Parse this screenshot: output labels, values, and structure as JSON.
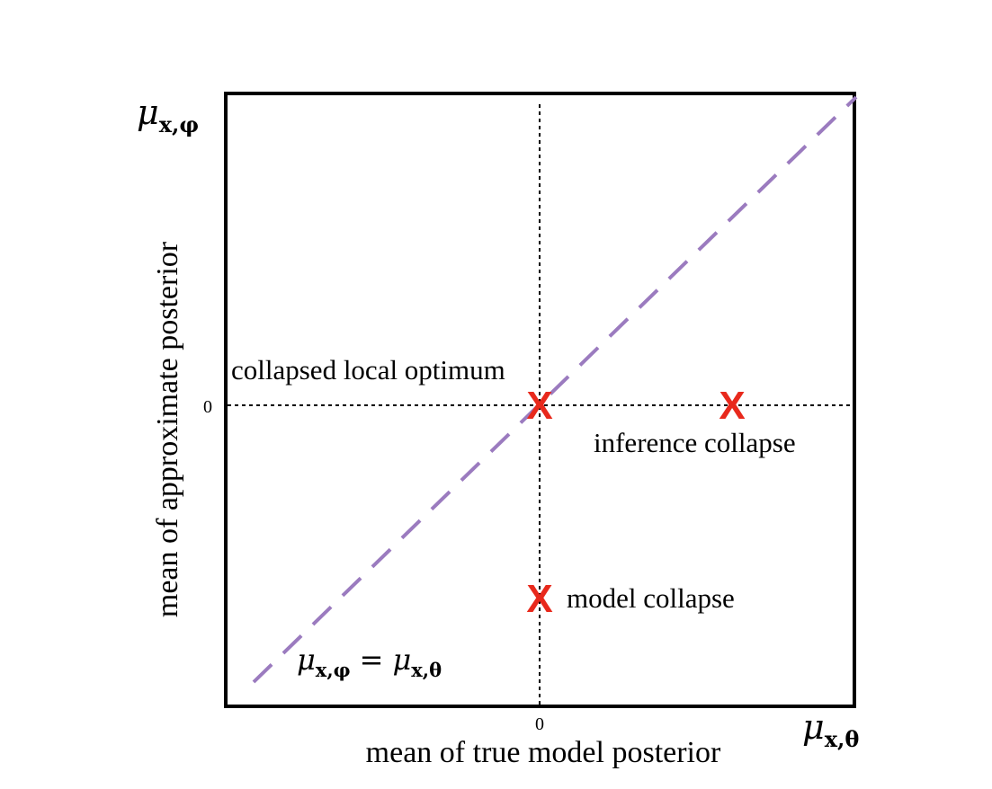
{
  "x_axis": {
    "label": "mean of true model posterior",
    "zero_tick": "0",
    "end_symbol_base": "μ",
    "end_symbol_sub": "x,θ"
  },
  "y_axis": {
    "label": "mean of approximate posterior",
    "zero_tick": "0",
    "end_symbol_base": "μ",
    "end_symbol_sub": "x,φ"
  },
  "identity_line": {
    "color": "#9b7bbf",
    "label_left_base": "μ",
    "label_left_sub": "x,φ",
    "label_equals": "=",
    "label_right_base": "μ",
    "label_right_sub": "x,θ"
  },
  "markers": {
    "color": "#e8291c",
    "symbol": "X",
    "collapsed_local_optimum": "collapsed local optimum",
    "inference_collapse": "inference collapse",
    "model_collapse": "model collapse"
  }
}
